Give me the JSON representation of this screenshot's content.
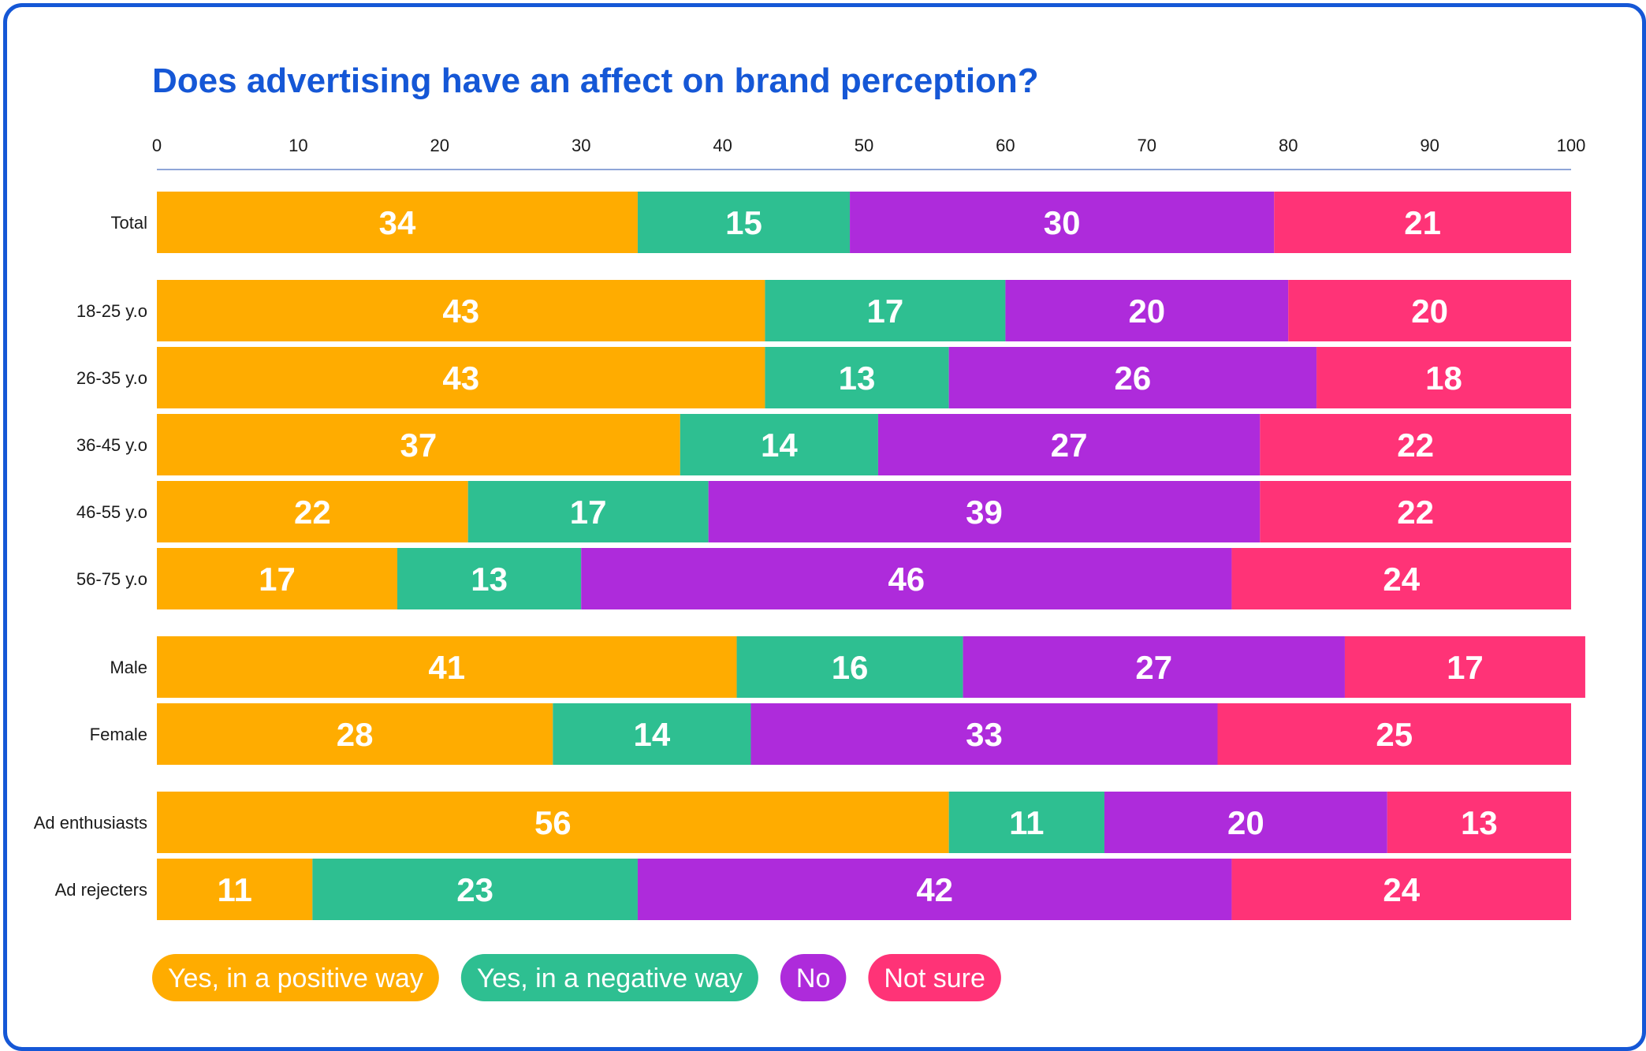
{
  "chart_data": {
    "type": "bar",
    "orientation": "horizontal",
    "stacked": true,
    "title": "Does advertising have an affect on brand perception?",
    "xlim": [
      0,
      100
    ],
    "xticks": [
      0,
      10,
      20,
      30,
      40,
      50,
      60,
      70,
      80,
      90,
      100
    ],
    "legend_position": "bottom-left",
    "categories": [
      "Total",
      "18-25 y.o",
      "26-35 y.o",
      "36-45 y.o",
      "46-55 y.o",
      "56-75 y.o",
      "Male",
      "Female",
      "Ad enthusiasts",
      "Ad rejecters"
    ],
    "groups": [
      [
        "Total"
      ],
      [
        "18-25 y.o",
        "26-35 y.o",
        "36-45 y.o",
        "46-55 y.o",
        "56-75 y.o"
      ],
      [
        "Male",
        "Female"
      ],
      [
        "Ad enthusiasts",
        "Ad rejecters"
      ]
    ],
    "series": [
      {
        "name": "Yes, in a positive way",
        "color": "#ffac00",
        "values": [
          34,
          43,
          43,
          37,
          22,
          17,
          41,
          28,
          56,
          11
        ]
      },
      {
        "name": "Yes, in a negative way",
        "color": "#2ebf91",
        "values": [
          15,
          17,
          13,
          14,
          17,
          13,
          16,
          14,
          11,
          23
        ]
      },
      {
        "name": "No",
        "color": "#ae2bdb",
        "values": [
          30,
          20,
          26,
          27,
          39,
          46,
          27,
          33,
          20,
          42
        ]
      },
      {
        "name": "Not sure",
        "color": "#ff3377",
        "values": [
          21,
          20,
          18,
          22,
          22,
          24,
          17,
          25,
          13,
          24
        ]
      }
    ]
  },
  "colors": {
    "title": "#1557d6",
    "border": "#1557d6",
    "axis_line": "#8fa6d8"
  }
}
